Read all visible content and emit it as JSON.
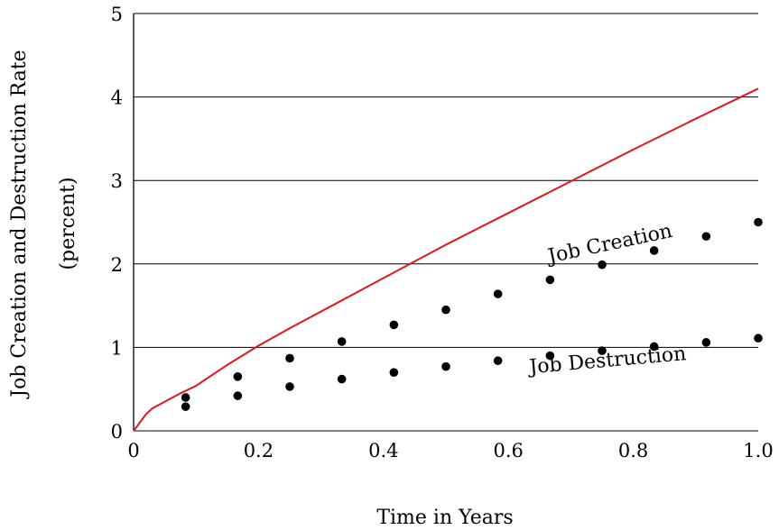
{
  "chart_data": {
    "type": "scatter",
    "xlabel": "Time in Years",
    "ylabel_lines": [
      "Job Creation and Destruction Rate",
      "(percent)"
    ],
    "xlim": [
      0,
      1.0
    ],
    "ylim": [
      0,
      5
    ],
    "x_ticks": [
      0,
      0.2,
      0.4,
      0.6,
      0.8,
      1.0
    ],
    "x_tick_labels": [
      "0",
      "0.2",
      "0.4",
      "0.6",
      "0.8",
      "1.0"
    ],
    "y_ticks": [
      0,
      1,
      2,
      3,
      4,
      5
    ],
    "y_tick_labels": [
      "0",
      "1",
      "2",
      "3",
      "4",
      "5"
    ],
    "horizontal_grid": true,
    "series": [
      {
        "kind": "points",
        "color": "#000000",
        "x": [
          0.0833,
          0.1667,
          0.25,
          0.3333,
          0.4167,
          0.5,
          0.5833,
          0.6667,
          0.75,
          0.8333,
          0.9167,
          1.0
        ],
        "y": [
          0.4,
          0.65,
          0.87,
          1.07,
          1.27,
          1.45,
          1.64,
          1.81,
          1.99,
          2.16,
          2.33,
          2.5
        ]
      },
      {
        "kind": "points",
        "color": "#000000",
        "x": [
          0.0833,
          0.1667,
          0.25,
          0.3333,
          0.4167,
          0.5,
          0.5833,
          0.6667,
          0.75,
          0.8333,
          0.9167,
          1.0
        ],
        "y": [
          0.29,
          0.42,
          0.53,
          0.62,
          0.7,
          0.77,
          0.84,
          0.9,
          0.96,
          1.01,
          1.06,
          1.11
        ]
      },
      {
        "kind": "line",
        "color": "#e8141b",
        "x": [
          0,
          0.005,
          0.01,
          0.02,
          0.03,
          0.05,
          0.075,
          0.1,
          0.15,
          0.2,
          0.25,
          0.3,
          0.4,
          0.5,
          0.6,
          0.7,
          0.8,
          0.9,
          1.0
        ],
        "y": [
          0,
          0.05,
          0.1,
          0.2,
          0.27,
          0.35,
          0.45,
          0.54,
          0.79,
          1.02,
          1.23,
          1.43,
          1.83,
          2.23,
          2.61,
          2.99,
          3.37,
          3.74,
          4.1
        ]
      }
    ],
    "annotations": [
      {
        "text": "Job Creation",
        "x": 0.765,
        "y": 2.17,
        "angle": -12
      },
      {
        "text": "Job Destruction",
        "x": 0.76,
        "y": 0.77,
        "angle": -5
      }
    ]
  }
}
